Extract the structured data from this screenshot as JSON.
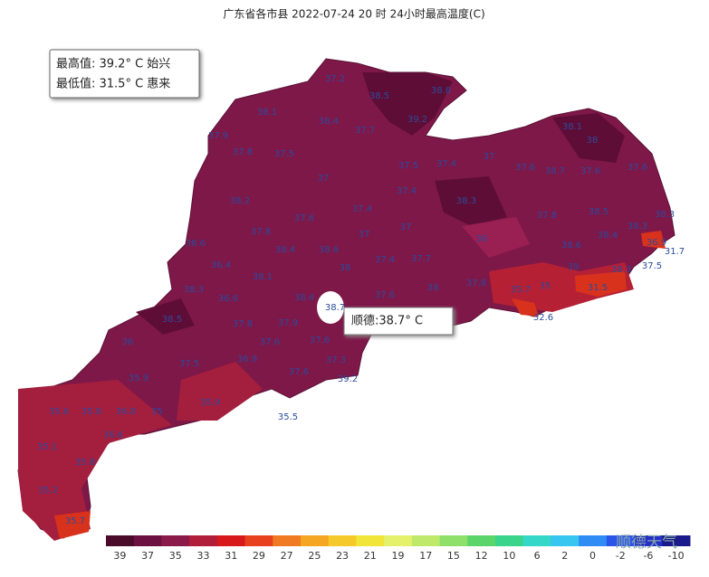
{
  "header": {
    "title": "广东省各市县 2022-07-24 20 时 24小时最高温度(C)"
  },
  "summary": {
    "max": "最高值: 39.2° C 始兴",
    "min": "最低值: 31.5° C 惠来"
  },
  "tooltip": "顺德:38.7° C",
  "labels": [
    "37.2",
    "38.5",
    "38.8",
    "38.1",
    "38.4",
    "39.2",
    "37.7",
    "37.9",
    "38.1",
    "38",
    "37.8",
    "37.5",
    "37",
    "37.5",
    "37.4",
    "37.6",
    "38.7",
    "37.6",
    "37.6",
    "37",
    "37.4",
    "38.2",
    "38.3",
    "37.4",
    "37.6",
    "37",
    "37.8",
    "38.5",
    "38.3",
    "38.3",
    "37.8",
    "37",
    "36",
    "38.4",
    "36.9",
    "38.6",
    "38.4",
    "38.6",
    "38.6",
    "31.7",
    "37.4",
    "37.7",
    "39",
    "36.4",
    "38",
    "35",
    "37.5",
    "38.3",
    "38.1",
    "37.8",
    "35.7",
    "38.3",
    "36.6",
    "38",
    "37.6",
    "31.5",
    "38.4",
    "38.7",
    "32.6",
    "38.5",
    "37.8",
    "37.9",
    "36",
    "37.6",
    "37.6",
    "37.5",
    "36.9",
    "37.3",
    "37.6",
    "35.9",
    "39.2",
    "35.9",
    "35.6",
    "35.8",
    "36.8",
    "35",
    "35.5",
    "36.6",
    "35.1",
    "35.8",
    "35.2",
    "35.7"
  ],
  "legend": {
    "ticks": [
      39,
      37,
      35,
      33,
      31,
      29,
      27,
      25,
      23,
      21,
      19,
      17,
      15,
      12,
      10,
      6,
      2,
      0,
      -2,
      -6,
      -10
    ],
    "colors": [
      "#4a0a2a",
      "#6b1040",
      "#8a1a4a",
      "#b01e3a",
      "#d7191c",
      "#e8411e",
      "#f07a22",
      "#f5a623",
      "#f6c92a",
      "#f2e53a",
      "#e5f06b",
      "#bfe96a",
      "#8ee06a",
      "#5bd46a",
      "#3ad48a",
      "#35d8c8",
      "#36c6f0",
      "#2f8cf5",
      "#2a55e8",
      "#2530c8",
      "#1a1a8a"
    ]
  },
  "watermark": "顺德天气"
}
